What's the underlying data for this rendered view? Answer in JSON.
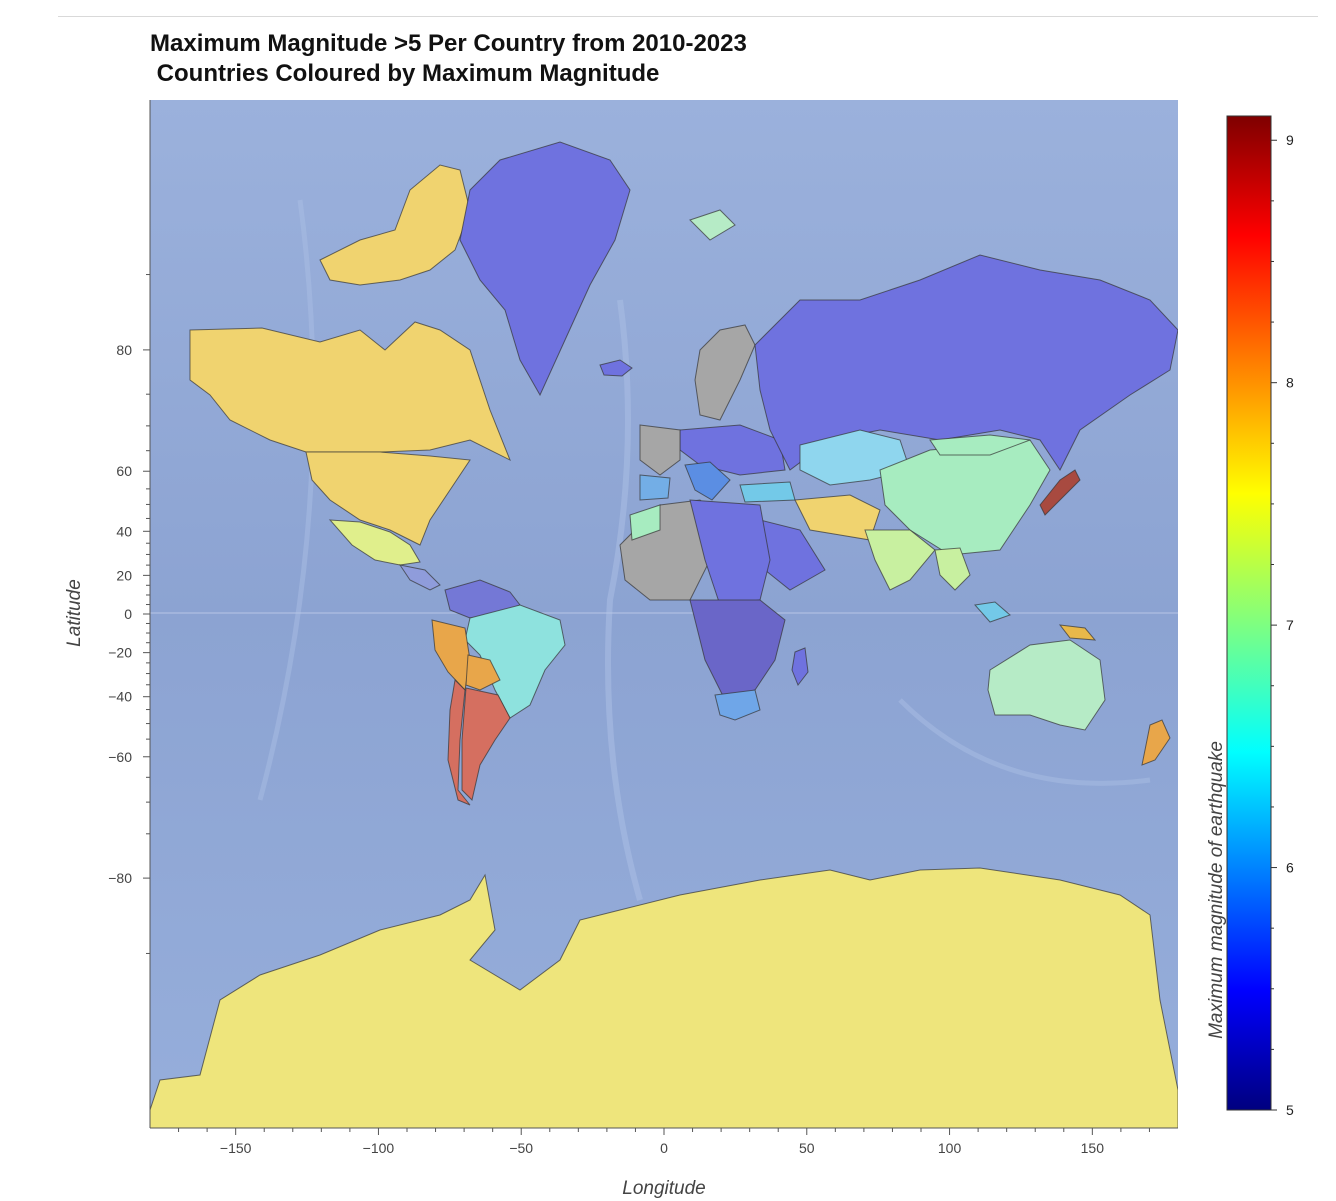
{
  "title_line1": "Maximum Magnitude >5 Per Country from 2010-2023",
  "title_line2": " Countries Coloured by Maximum Magnitude",
  "chart_data": {
    "type": "choropleth-map",
    "projection": "Mercator",
    "xlabel": "Longitude",
    "ylabel": "Latitude",
    "colorbar_label": "Maximum magnitude of earthquake",
    "colormap": "jet",
    "xlim": [
      -180,
      180
    ],
    "ylim": [
      -89,
      89
    ],
    "x_ticks": [
      -150,
      -100,
      -50,
      0,
      50,
      100,
      150
    ],
    "y_ticks": [
      80,
      60,
      40,
      20,
      0,
      -20,
      -40,
      -60,
      -80
    ],
    "colorbar_range": [
      5,
      9.1
    ],
    "colorbar_ticks": [
      5,
      6,
      7,
      8,
      9
    ],
    "no_data_color": "#a6a6a6",
    "ocean_color": "#8fa7d6",
    "countries_est_max_magnitude": [
      {
        "region": "Canada",
        "value": 7.8
      },
      {
        "region": "United States",
        "value": 7.8
      },
      {
        "region": "Greenland",
        "value": 5.5
      },
      {
        "region": "Mexico",
        "value": 7.4
      },
      {
        "region": "Brazil",
        "value": 6.6
      },
      {
        "region": "Peru",
        "value": 8.0
      },
      {
        "region": "Chile",
        "value": 8.8
      },
      {
        "region": "Argentina",
        "value": 8.4
      },
      {
        "region": "Russia",
        "value": 5.5
      },
      {
        "region": "Kazakhstan",
        "value": 6.5
      },
      {
        "region": "China",
        "value": 6.9
      },
      {
        "region": "India",
        "value": 7.0
      },
      {
        "region": "Iran",
        "value": 7.7
      },
      {
        "region": "Japan",
        "value": 9.1
      },
      {
        "region": "Australia",
        "value": 6.8
      },
      {
        "region": "Papua New Guinea",
        "value": 7.9
      },
      {
        "region": "New Zealand",
        "value": 7.8
      },
      {
        "region": "Antarctica",
        "value": 7.6
      },
      {
        "region": "Northern Africa",
        "value": 5.5
      },
      {
        "region": "Southern Africa",
        "value": 6.2
      }
    ]
  }
}
